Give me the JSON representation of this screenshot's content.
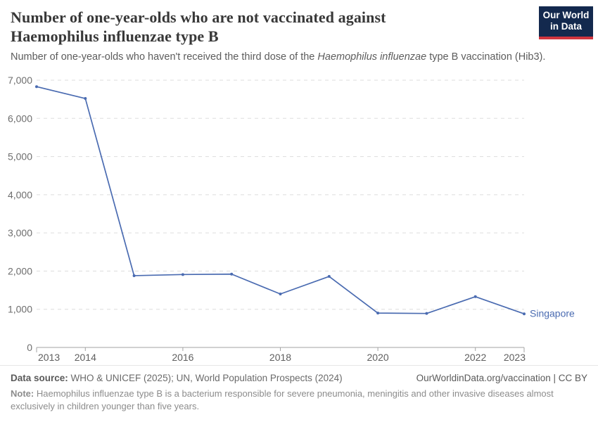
{
  "header": {
    "title_line1": "Number of one-year-olds who are not vaccinated against",
    "title_line2": "Haemophilus influenzae type B",
    "logo_line1": "Our World",
    "logo_line2": "in Data"
  },
  "subtitle": {
    "prefix": "Number of one-year-olds who haven't received the third dose of the ",
    "italic": "Haemophilus influenzae",
    "suffix": " type B vaccination (Hib3)."
  },
  "chart_data": {
    "type": "line",
    "title": "Number of one-year-olds who are not vaccinated against Haemophilus influenzae type B",
    "x": [
      2013,
      2014,
      2015,
      2016,
      2017,
      2018,
      2019,
      2020,
      2021,
      2022,
      2023
    ],
    "series": [
      {
        "name": "Singapore",
        "values": [
          6830,
          6520,
          1880,
          1910,
          1920,
          1400,
          1860,
          900,
          890,
          1330,
          880
        ],
        "color": "#4a6bb1"
      }
    ],
    "x_ticks": [
      2013,
      2014,
      2016,
      2018,
      2020,
      2022,
      2023
    ],
    "y_ticks": [
      0,
      1000,
      2000,
      3000,
      4000,
      5000,
      6000,
      7000
    ],
    "xlim": [
      2013,
      2023
    ],
    "ylim": [
      0,
      7000
    ],
    "xlabel": "",
    "ylabel": "",
    "grid": "horizontal-dashed",
    "legend_position": "end-of-line"
  },
  "footer": {
    "datasource_label": "Data source:",
    "datasource_text": "WHO & UNICEF (2025); UN, World Population Prospects (2024)",
    "credit": "OurWorldinData.org/vaccination | CC BY",
    "note_label": "Note:",
    "note_text": "Haemophilus influenzae type B is a bacterium responsible for severe pneumonia, meningitis and other invasive diseases almost exclusively in children younger than five years."
  },
  "colors": {
    "line": "#4a6bb1",
    "grid": "#dddddd",
    "axis": "#a3a3a3",
    "tick_label": "#6e6e6e",
    "logo_bg": "#13294e",
    "logo_bar": "#d0353f"
  }
}
